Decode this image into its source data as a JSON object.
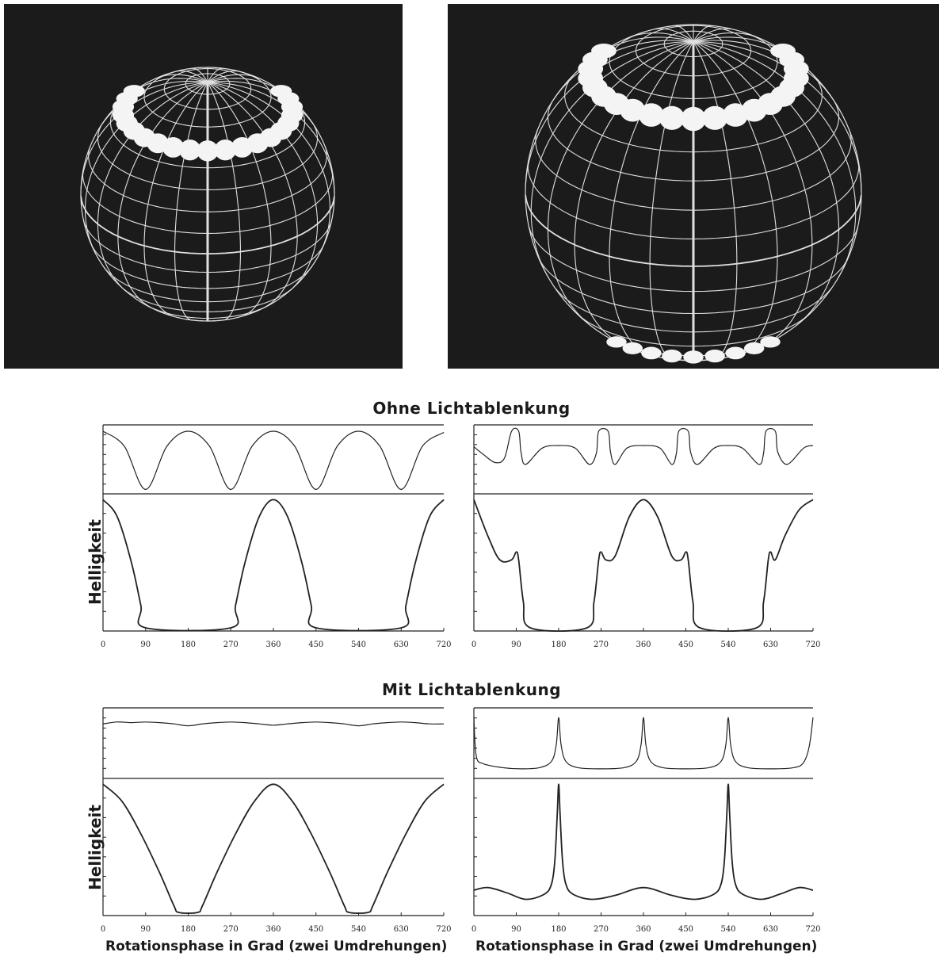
{
  "sections": {
    "top_title": "Ohne Lichtablenkung",
    "bottom_title": "Mit Lichtablenkung"
  },
  "ylabel": "Helligkeit",
  "xlabel": "Rotationsphase in Grad (zwei Umdrehungen)",
  "colors": {
    "background": "#ffffff",
    "line": "#222222",
    "panel": "#1b1b1b",
    "grid": "#e0e0e0",
    "spot": "#f4f4f4"
  },
  "chart_data": [
    {
      "id": "ohne-left-upper",
      "type": "line",
      "xlim": [
        0,
        720
      ],
      "ylim": [
        0,
        1
      ],
      "x": [
        0,
        45,
        90,
        135,
        180,
        225,
        270,
        315,
        360,
        405,
        450,
        495,
        540,
        585,
        630,
        675,
        720
      ],
      "y": [
        0.95,
        0.71,
        0.02,
        0.71,
        0.95,
        0.71,
        0.02,
        0.71,
        0.95,
        0.71,
        0.02,
        0.71,
        0.95,
        0.71,
        0.02,
        0.71,
        0.93
      ]
    },
    {
      "id": "ohne-left-lower",
      "type": "line",
      "xlim": [
        0,
        720
      ],
      "ylim": [
        0,
        1
      ],
      "x": [
        0,
        30,
        60,
        80,
        90,
        270,
        280,
        300,
        330,
        360,
        390,
        420,
        440,
        450,
        630,
        640,
        660,
        690,
        720
      ],
      "y": [
        0.98,
        0.85,
        0.5,
        0.17,
        0,
        0,
        0.17,
        0.5,
        0.85,
        0.98,
        0.85,
        0.5,
        0.17,
        0,
        0,
        0.17,
        0.5,
        0.85,
        0.98
      ]
    },
    {
      "id": "ohne-right-upper",
      "type": "line",
      "xlim": [
        0,
        720
      ],
      "ylim": [
        0,
        1
      ],
      "x": [
        0,
        20,
        45,
        65,
        80,
        95,
        100,
        110,
        145,
        180,
        215,
        245,
        260,
        265,
        285,
        290,
        300,
        325,
        360,
        395,
        420,
        430,
        435,
        455,
        460,
        475,
        510,
        540,
        570,
        605,
        615,
        620,
        640,
        645,
        665,
        700,
        720
      ],
      "y": [
        0.7,
        0.58,
        0.45,
        0.52,
        0.95,
        0.95,
        0.62,
        0.42,
        0.68,
        0.72,
        0.68,
        0.42,
        0.6,
        0.95,
        0.95,
        0.62,
        0.42,
        0.68,
        0.72,
        0.68,
        0.42,
        0.6,
        0.95,
        0.95,
        0.62,
        0.42,
        0.68,
        0.72,
        0.68,
        0.42,
        0.6,
        0.95,
        0.95,
        0.62,
        0.42,
        0.68,
        0.72
      ]
    },
    {
      "id": "ohne-right-lower",
      "type": "line",
      "xlim": [
        0,
        720
      ],
      "ylim": [
        0,
        1
      ],
      "x": [
        0,
        30,
        55,
        80,
        90,
        95,
        105,
        120,
        240,
        255,
        265,
        270,
        280,
        300,
        330,
        360,
        390,
        420,
        440,
        450,
        455,
        465,
        480,
        600,
        615,
        625,
        630,
        640,
        660,
        690,
        720
      ],
      "y": [
        0.98,
        0.7,
        0.52,
        0.52,
        0.58,
        0.52,
        0.2,
        0,
        0,
        0.2,
        0.52,
        0.58,
        0.52,
        0.55,
        0.85,
        0.98,
        0.85,
        0.55,
        0.52,
        0.58,
        0.52,
        0.2,
        0,
        0,
        0.2,
        0.52,
        0.58,
        0.52,
        0.7,
        0.9,
        0.98
      ]
    },
    {
      "id": "mit-left-upper",
      "type": "line",
      "xlim": [
        0,
        720
      ],
      "ylim": [
        0,
        1
      ],
      "x": [
        0,
        30,
        60,
        90,
        120,
        150,
        180,
        210,
        240,
        270,
        300,
        330,
        360,
        390,
        420,
        450,
        480,
        510,
        540,
        570,
        600,
        630,
        660,
        690,
        720
      ],
      "y": [
        0.8,
        0.83,
        0.82,
        0.83,
        0.82,
        0.8,
        0.77,
        0.8,
        0.82,
        0.83,
        0.82,
        0.8,
        0.78,
        0.8,
        0.82,
        0.83,
        0.82,
        0.8,
        0.77,
        0.8,
        0.82,
        0.83,
        0.82,
        0.8,
        0.8
      ]
    },
    {
      "id": "mit-left-lower",
      "type": "line",
      "xlim": [
        0,
        720
      ],
      "ylim": [
        0,
        1
      ],
      "x": [
        0,
        40,
        80,
        120,
        150,
        160,
        200,
        210,
        240,
        280,
        320,
        360,
        400,
        440,
        480,
        510,
        520,
        560,
        570,
        600,
        640,
        680,
        720
      ],
      "y": [
        0.98,
        0.85,
        0.6,
        0.3,
        0.05,
        0,
        0,
        0.05,
        0.3,
        0.6,
        0.85,
        0.98,
        0.85,
        0.6,
        0.3,
        0.05,
        0,
        0,
        0.05,
        0.3,
        0.6,
        0.85,
        0.98
      ]
    },
    {
      "id": "mit-right-upper",
      "type": "line",
      "xlim": [
        0,
        720
      ],
      "ylim": [
        0,
        1
      ],
      "x": [
        0,
        5,
        20,
        60,
        100,
        140,
        165,
        175,
        180,
        185,
        195,
        220,
        270,
        320,
        345,
        355,
        360,
        365,
        375,
        400,
        450,
        500,
        525,
        535,
        540,
        545,
        555,
        580,
        630,
        680,
        700,
        712,
        720
      ],
      "y": [
        0.9,
        0.3,
        0.18,
        0.12,
        0.1,
        0.12,
        0.22,
        0.48,
        0.9,
        0.48,
        0.22,
        0.12,
        0.1,
        0.12,
        0.22,
        0.48,
        0.9,
        0.48,
        0.22,
        0.12,
        0.1,
        0.12,
        0.22,
        0.48,
        0.9,
        0.48,
        0.22,
        0.12,
        0.1,
        0.12,
        0.2,
        0.45,
        0.9
      ]
    },
    {
      "id": "mit-right-lower",
      "type": "line",
      "xlim": [
        0,
        720
      ],
      "ylim": [
        0,
        1
      ],
      "x": [
        0,
        30,
        70,
        110,
        150,
        165,
        172,
        177,
        180,
        183,
        188,
        195,
        210,
        250,
        300,
        360,
        420,
        470,
        510,
        525,
        532,
        537,
        540,
        543,
        548,
        555,
        570,
        610,
        650,
        690,
        720
      ],
      "y": [
        0.17,
        0.19,
        0.15,
        0.1,
        0.14,
        0.22,
        0.4,
        0.75,
        0.98,
        0.75,
        0.4,
        0.22,
        0.14,
        0.1,
        0.13,
        0.19,
        0.13,
        0.1,
        0.14,
        0.22,
        0.4,
        0.75,
        0.98,
        0.75,
        0.4,
        0.22,
        0.14,
        0.1,
        0.14,
        0.19,
        0.17
      ]
    }
  ],
  "xticks": [
    "0",
    "90",
    "180",
    "270",
    "360",
    "450",
    "540",
    "630",
    "720"
  ]
}
